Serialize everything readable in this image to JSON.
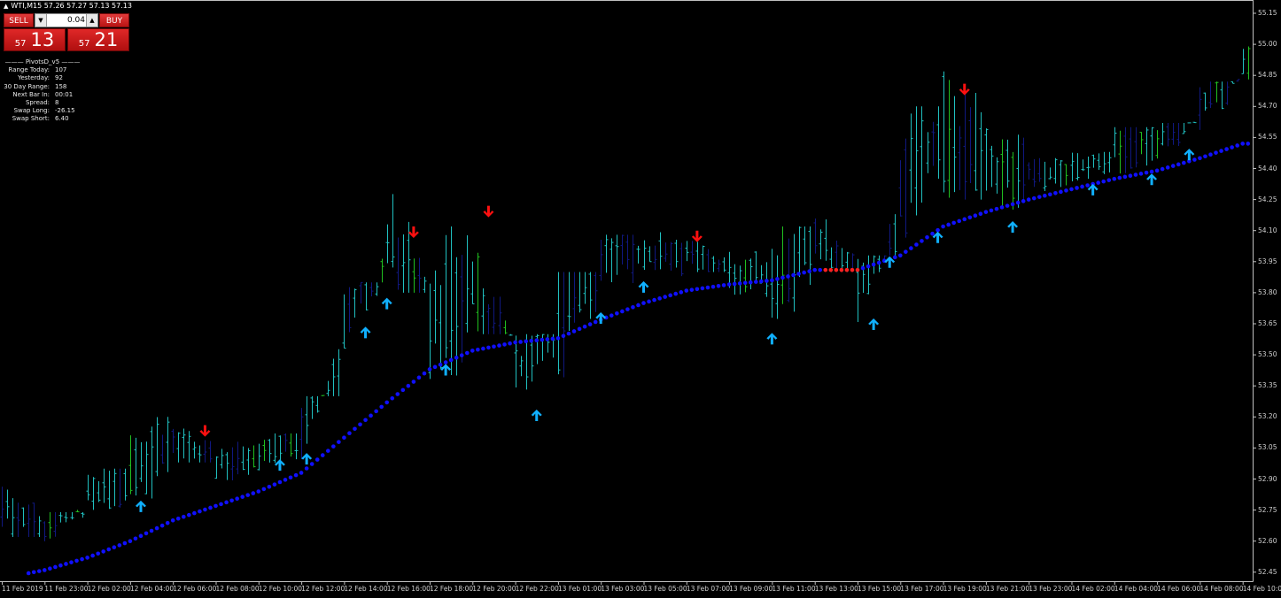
{
  "window": {
    "symbol_line": "WTI,M15  57.26 57.27 57.13 57.13"
  },
  "trade_panel": {
    "sell_label": "SELL",
    "buy_label": "BUY",
    "lot_value": "0.04",
    "sell_price_small": "57",
    "sell_price_big": "13",
    "buy_price_small": "57",
    "buy_price_big": "21"
  },
  "pivots": {
    "header": "——— PivotsD_v5 ———",
    "rows": [
      {
        "label": "Range  Today:",
        "value": "107"
      },
      {
        "label": "Yesterday:",
        "value": "92"
      },
      {
        "label": "30 Day Range:",
        "value": "158"
      },
      {
        "label": "Next Bar In:",
        "value": "00:01"
      },
      {
        "label": "Spread:",
        "value": "8"
      },
      {
        "label": "Swap  Long:",
        "value": "-26.15"
      },
      {
        "label": "Swap  Short:",
        "value": "6.40"
      }
    ]
  },
  "colors": {
    "background": "#000000",
    "bar": "#20c0c0",
    "bar_alt": "#101880",
    "bar_green": "#20c020",
    "trend": "#1010ff",
    "trend_bear": "#ff2020",
    "arrow_up": "#10b0ff",
    "arrow_down": "#ff1010",
    "axis": "#c0c0c0"
  },
  "chart_data": {
    "type": "candlestick",
    "timeframe": "M15",
    "y_ticks": [
      "55.15",
      "55.00",
      "54.85",
      "54.70",
      "54.55",
      "54.40",
      "54.25",
      "54.10",
      "53.95",
      "53.80",
      "53.65",
      "53.50",
      "53.35",
      "53.20",
      "53.05",
      "52.90",
      "52.75",
      "52.60",
      "52.45"
    ],
    "ylim": [
      52.45,
      55.15
    ],
    "x_ticks": [
      {
        "label": "11 Feb 2019",
        "t": "11 Feb 21:00"
      },
      {
        "label": "11 Feb 23:00",
        "t": "11 Feb 23:00"
      },
      {
        "label": "12 Feb 02:00",
        "t": "12 Feb 02:00"
      },
      {
        "label": "12 Feb 04:00",
        "t": "12 Feb 04:00"
      },
      {
        "label": "12 Feb 06:00",
        "t": "12 Feb 06:00"
      },
      {
        "label": "12 Feb 08:00",
        "t": "12 Feb 08:00"
      },
      {
        "label": "12 Feb 10:00",
        "t": "12 Feb 10:00"
      },
      {
        "label": "12 Feb 12:00",
        "t": "12 Feb 12:00"
      },
      {
        "label": "12 Feb 14:00",
        "t": "12 Feb 14:00"
      },
      {
        "label": "12 Feb 16:00",
        "t": "12 Feb 16:00"
      },
      {
        "label": "12 Feb 18:00",
        "t": "12 Feb 18:00"
      },
      {
        "label": "12 Feb 20:00",
        "t": "12 Feb 20:00"
      },
      {
        "label": "12 Feb 22:00",
        "t": "12 Feb 22:00"
      },
      {
        "label": "13 Feb 01:00",
        "t": "13 Feb 01:00"
      },
      {
        "label": "13 Feb 03:00",
        "t": "13 Feb 03:00"
      },
      {
        "label": "13 Feb 05:00",
        "t": "13 Feb 05:00"
      },
      {
        "label": "13 Feb 07:00",
        "t": "13 Feb 07:00"
      },
      {
        "label": "13 Feb 09:00",
        "t": "13 Feb 09:00"
      },
      {
        "label": "13 Feb 11:00",
        "t": "13 Feb 11:00"
      },
      {
        "label": "13 Feb 13:00",
        "t": "13 Feb 13:00"
      },
      {
        "label": "13 Feb 15:00",
        "t": "13 Feb 15:00"
      },
      {
        "label": "13 Feb 17:00",
        "t": "13 Feb 17:00"
      },
      {
        "label": "13 Feb 19:00",
        "t": "13 Feb 19:00"
      },
      {
        "label": "13 Feb 21:00",
        "t": "13 Feb 21:00"
      },
      {
        "label": "13 Feb 23:00",
        "t": "13 Feb 23:00"
      },
      {
        "label": "14 Feb 02:00",
        "t": "14 Feb 02:00"
      },
      {
        "label": "14 Feb 04:00",
        "t": "14 Feb 04:00"
      },
      {
        "label": "14 Feb 06:00",
        "t": "14 Feb 06:00"
      },
      {
        "label": "14 Feb 08:00",
        "t": "14 Feb 08:00"
      },
      {
        "label": "14 Feb 10:00",
        "t": "14 Feb 10:00"
      }
    ],
    "price": [
      [
        52.9,
        52.62,
        52.78
      ],
      [
        52.74,
        52.55,
        52.65
      ],
      [
        52.95,
        52.7,
        52.84
      ],
      [
        53.2,
        52.76,
        52.88
      ],
      [
        53.18,
        52.98,
        53.08
      ],
      [
        53.08,
        52.86,
        52.97
      ],
      [
        53.12,
        52.92,
        53.04
      ],
      [
        53.3,
        52.98,
        53.1
      ],
      [
        53.85,
        53.5,
        53.66
      ],
      [
        54.33,
        53.8,
        54.05
      ],
      [
        54.12,
        53.35,
        53.6
      ],
      [
        54.0,
        53.6,
        53.85
      ],
      [
        53.6,
        53.25,
        53.42
      ],
      [
        53.9,
        53.35,
        53.72
      ],
      [
        54.08,
        53.8,
        54.0
      ],
      [
        54.1,
        53.88,
        53.98
      ],
      [
        54.05,
        53.9,
        54.01
      ],
      [
        54.0,
        53.78,
        53.9
      ],
      [
        54.12,
        53.6,
        53.9
      ],
      [
        54.22,
        53.9,
        54.05
      ],
      [
        53.98,
        53.65,
        53.8
      ],
      [
        54.7,
        54.0,
        54.3
      ],
      [
        54.92,
        54.25,
        54.55
      ],
      [
        54.6,
        54.2,
        54.35
      ],
      [
        54.45,
        54.28,
        54.38
      ],
      [
        54.48,
        54.3,
        54.38
      ],
      [
        54.6,
        54.36,
        54.5
      ],
      [
        54.62,
        54.42,
        54.55
      ],
      [
        54.82,
        54.55,
        54.7
      ],
      [
        55.03,
        54.78,
        54.95
      ]
    ],
    "trend": [
      52.42,
      52.46,
      52.52,
      52.6,
      52.7,
      52.77,
      52.84,
      52.93,
      53.1,
      53.27,
      53.43,
      53.52,
      53.56,
      53.58,
      53.67,
      53.75,
      53.81,
      53.84,
      53.86,
      53.91,
      53.91,
      53.98,
      54.12,
      54.19,
      54.25,
      54.3,
      54.35,
      54.39,
      54.45,
      54.52
    ],
    "trend_bearish_between": [
      "13 Feb 13:30",
      "13 Feb 15:15"
    ],
    "signals": [
      {
        "dir": "up",
        "t": "12 Feb 04:30",
        "p": 52.77
      },
      {
        "dir": "down",
        "t": "12 Feb 07:30",
        "p": 53.13
      },
      {
        "dir": "up",
        "t": "12 Feb 11:00",
        "p": 52.97
      },
      {
        "dir": "up",
        "t": "12 Feb 12:15",
        "p": 53.0
      },
      {
        "dir": "up",
        "t": "12 Feb 15:00",
        "p": 53.61
      },
      {
        "dir": "up",
        "t": "12 Feb 16:00",
        "p": 53.75
      },
      {
        "dir": "down",
        "t": "12 Feb 17:15",
        "p": 54.09
      },
      {
        "dir": "up",
        "t": "12 Feb 18:45",
        "p": 53.43
      },
      {
        "dir": "down",
        "t": "12 Feb 20:45",
        "p": 54.19
      },
      {
        "dir": "up",
        "t": "12 Feb 23:30",
        "p": 53.21
      },
      {
        "dir": "up",
        "t": "13 Feb 03:00",
        "p": 53.68
      },
      {
        "dir": "up",
        "t": "13 Feb 05:00",
        "p": 53.83
      },
      {
        "dir": "down",
        "t": "13 Feb 07:30",
        "p": 54.07
      },
      {
        "dir": "up",
        "t": "13 Feb 11:00",
        "p": 53.58
      },
      {
        "dir": "up",
        "t": "13 Feb 15:45",
        "p": 53.65
      },
      {
        "dir": "up",
        "t": "13 Feb 16:30",
        "p": 53.95
      },
      {
        "dir": "up",
        "t": "13 Feb 18:45",
        "p": 54.07
      },
      {
        "dir": "down",
        "t": "13 Feb 20:00",
        "p": 54.78
      },
      {
        "dir": "up",
        "t": "13 Feb 22:15",
        "p": 54.12
      },
      {
        "dir": "up",
        "t": "14 Feb 03:00",
        "p": 54.3
      },
      {
        "dir": "up",
        "t": "14 Feb 05:45",
        "p": 54.35
      },
      {
        "dir": "up",
        "t": "14 Feb 07:30",
        "p": 54.47
      }
    ]
  }
}
